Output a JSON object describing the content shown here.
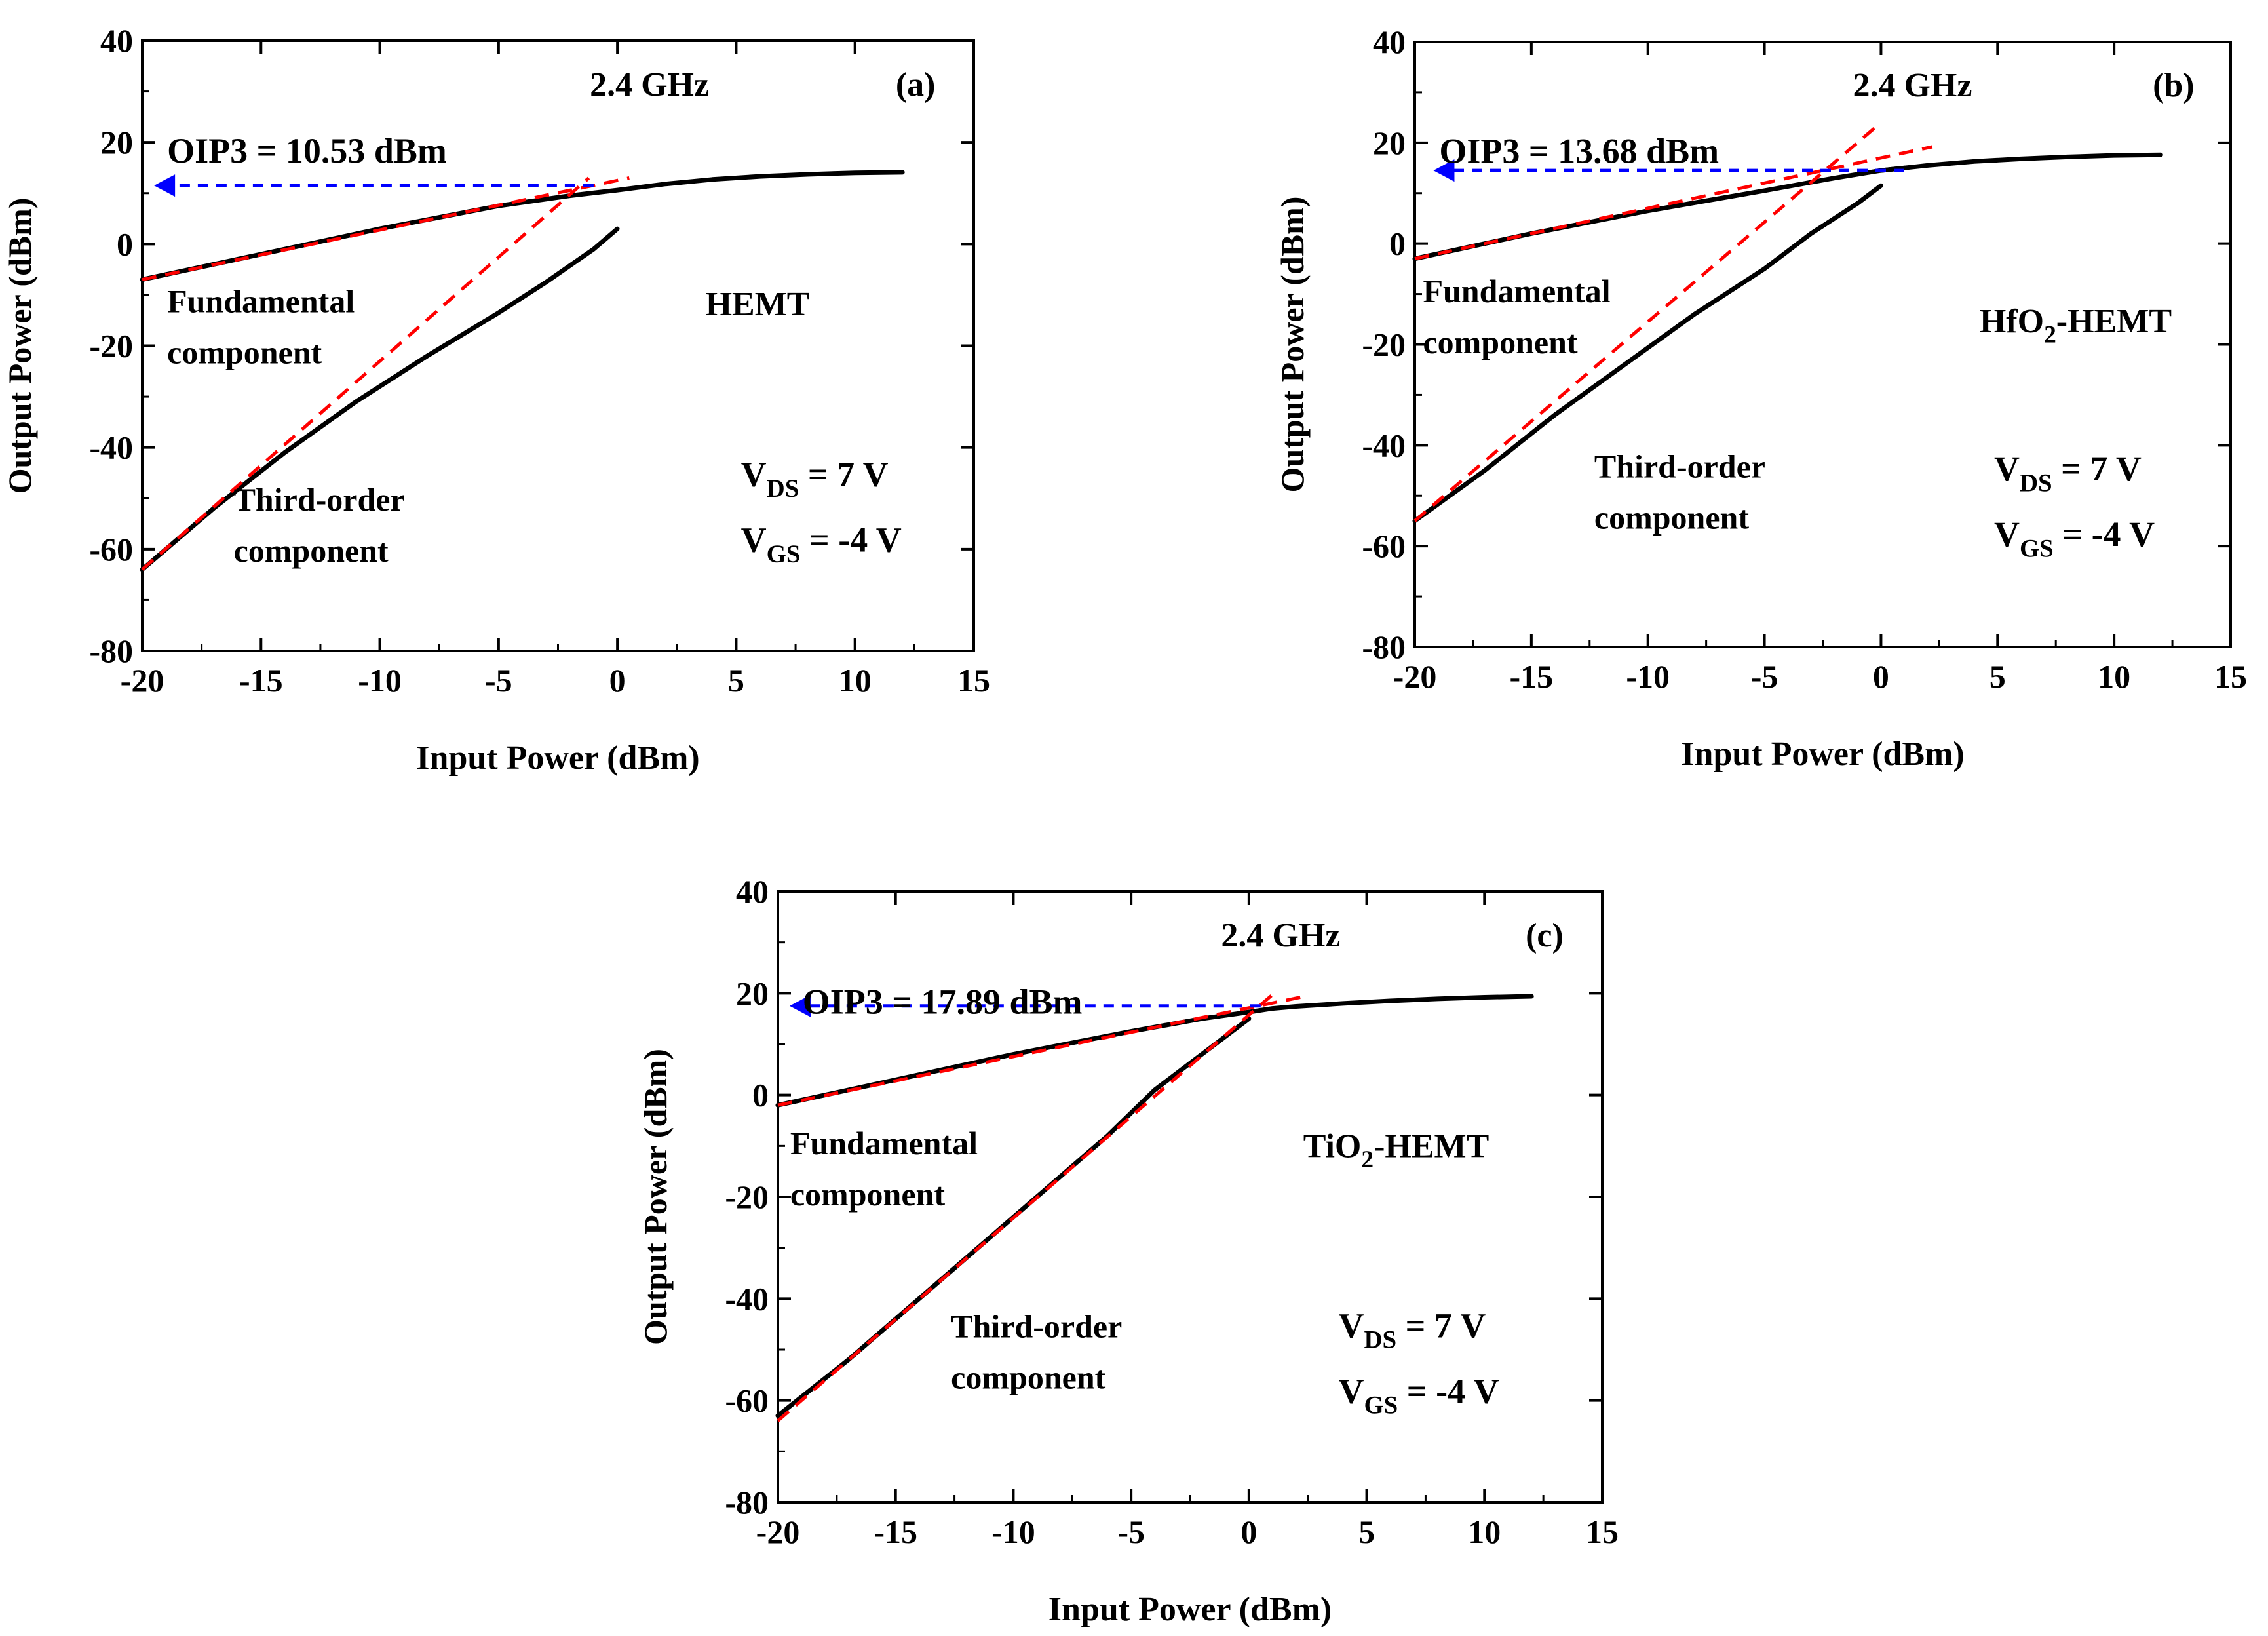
{
  "chart_data": [
    {
      "type": "line",
      "panel_label": "(a)",
      "frequency": "2.4 GHz",
      "device": "HEMT",
      "device_sub": "",
      "device_suffix": "",
      "oip3_label": "OIP3 = 10.53 dBm",
      "oip3_value": 10.53,
      "fund_label": [
        "Fundamental",
        "component"
      ],
      "third_label": [
        "Third-order",
        "component"
      ],
      "bias": {
        "vds_sub": "DS",
        "vds_text": " = 7 V",
        "vgs_sub": "GS",
        "vgs_text": " = -4 V"
      },
      "xlabel": "Input Power (dBm)",
      "ylabel": "Output Power (dBm)",
      "xlim": [
        -20,
        15
      ],
      "ylim": [
        -80,
        40
      ],
      "xticks": [
        -20,
        -15,
        -10,
        -5,
        0,
        5,
        10,
        15
      ],
      "yticks": [
        -80,
        -60,
        -40,
        -20,
        0,
        20,
        40
      ],
      "series": [
        {
          "name": "Fundamental component",
          "color": "#000000",
          "x": [
            -20,
            -15,
            -10,
            -5,
            -2,
            0,
            2,
            4,
            6,
            8,
            10,
            12
          ],
          "y": [
            -7,
            -2,
            3,
            7.5,
            9.5,
            10.6,
            11.8,
            12.7,
            13.3,
            13.7,
            14,
            14.1
          ]
        },
        {
          "name": "Third-order component",
          "color": "#000000",
          "x": [
            -20,
            -17,
            -14,
            -11,
            -8,
            -5,
            -3,
            -1,
            0
          ],
          "y": [
            -64,
            -52,
            -41,
            -31,
            -22,
            -13.5,
            -7.5,
            -1,
            3
          ]
        }
      ],
      "fits": [
        {
          "name": "Fundamental fit",
          "color": "#ff0000",
          "x": [
            -20,
            0.5
          ],
          "y": [
            -7,
            13
          ]
        },
        {
          "name": "Third-order fit",
          "color": "#ff0000",
          "x": [
            -20,
            -1.2
          ],
          "y": [
            -64,
            13
          ]
        }
      ],
      "arrow": {
        "color": "#0000ff",
        "from_x": -1,
        "to_x": -19.5,
        "y": 11.5
      }
    },
    {
      "type": "line",
      "panel_label": "(b)",
      "frequency": "2.4 GHz",
      "device": "HfO",
      "device_sub": "2",
      "device_suffix": "-HEMT",
      "oip3_label": "OIP3 = 13.68 dBm",
      "oip3_value": 13.68,
      "fund_label": [
        "Fundamental",
        "component"
      ],
      "third_label": [
        "Third-order",
        "component"
      ],
      "bias": {
        "vds_sub": "DS",
        "vds_text": " = 7 V",
        "vgs_sub": "GS",
        "vgs_text": " = -4 V"
      },
      "xlabel": "Input Power (dBm)",
      "ylabel": "Output Power (dBm)",
      "xlim": [
        -20,
        15
      ],
      "ylim": [
        -80,
        40
      ],
      "xticks": [
        -20,
        -15,
        -10,
        -5,
        0,
        5,
        10,
        15
      ],
      "yticks": [
        -80,
        -60,
        -40,
        -20,
        0,
        20,
        40
      ],
      "series": [
        {
          "name": "Fundamental component",
          "color": "#000000",
          "x": [
            -20,
            -15,
            -10,
            -5,
            -2,
            0,
            2,
            4,
            6,
            8,
            10,
            12
          ],
          "y": [
            -3,
            2,
            6.5,
            10.5,
            13,
            14.5,
            15.5,
            16.3,
            16.8,
            17.2,
            17.5,
            17.6
          ]
        },
        {
          "name": "Third-order component",
          "color": "#000000",
          "x": [
            -20,
            -17,
            -14,
            -11,
            -8,
            -5,
            -3,
            -1,
            0
          ],
          "y": [
            -55,
            -45,
            -34,
            -24,
            -14,
            -5,
            2,
            8,
            11.5
          ]
        },
        {
          "name": "Fundamental tail",
          "color": "#000000",
          "x": [
            0,
            1
          ],
          "y": [
            14.5,
            15
          ]
        }
      ],
      "fits": [
        {
          "name": "Fundamental fit",
          "color": "#ff0000",
          "x": [
            -20,
            2.2
          ],
          "y": [
            -3,
            19.2
          ]
        },
        {
          "name": "Third-order fit",
          "color": "#ff0000",
          "x": [
            -20,
            0
          ],
          "y": [
            -55,
            24
          ]
        }
      ],
      "arrow": {
        "color": "#0000ff",
        "from_x": 1,
        "to_x": -19.2,
        "y": 14.5
      }
    },
    {
      "type": "line",
      "panel_label": "(c)",
      "frequency": "2.4 GHz",
      "device": "TiO",
      "device_sub": "2",
      "device_suffix": "-HEMT",
      "oip3_label": "OIP3 = 17.89 dBm",
      "oip3_value": 17.89,
      "fund_label": [
        "Fundamental",
        "component"
      ],
      "third_label": [
        "Third-order",
        "component"
      ],
      "bias": {
        "vds_sub": "DS",
        "vds_text": " = 7 V",
        "vgs_sub": "GS",
        "vgs_text": " = -4 V"
      },
      "xlabel": "Input Power (dBm)",
      "ylabel": "Output Power (dBm)",
      "xlim": [
        -20,
        15
      ],
      "ylim": [
        -80,
        40
      ],
      "xticks": [
        -20,
        -15,
        -10,
        -5,
        0,
        5,
        10,
        15
      ],
      "yticks": [
        -80,
        -60,
        -40,
        -20,
        0,
        20,
        40
      ],
      "series": [
        {
          "name": "Fundamental component",
          "color": "#000000",
          "x": [
            -20,
            -15,
            -10,
            -5,
            -2,
            0,
            1,
            2,
            4,
            6,
            8,
            10,
            12
          ],
          "y": [
            -2,
            3,
            8,
            12.5,
            15,
            16.3,
            17,
            17.4,
            18,
            18.5,
            18.9,
            19.2,
            19.4
          ]
        },
        {
          "name": "Third-order component",
          "color": "#000000",
          "x": [
            -20,
            -17,
            -14,
            -11,
            -8,
            -6,
            -4,
            -2,
            0
          ],
          "y": [
            -63,
            -52,
            -40,
            -28,
            -16,
            -8,
            1,
            8,
            15
          ]
        }
      ],
      "fits": [
        {
          "name": "Fundamental fit",
          "color": "#ff0000",
          "x": [
            -20,
            2.5
          ],
          "y": [
            -2,
            19.5
          ]
        },
        {
          "name": "Third-order fit",
          "color": "#ff0000",
          "x": [
            -20,
            1.2
          ],
          "y": [
            -64,
            20.5
          ]
        }
      ],
      "arrow": {
        "color": "#0000ff",
        "from_x": 0.5,
        "to_x": -19.5,
        "y": 17.5
      }
    }
  ]
}
